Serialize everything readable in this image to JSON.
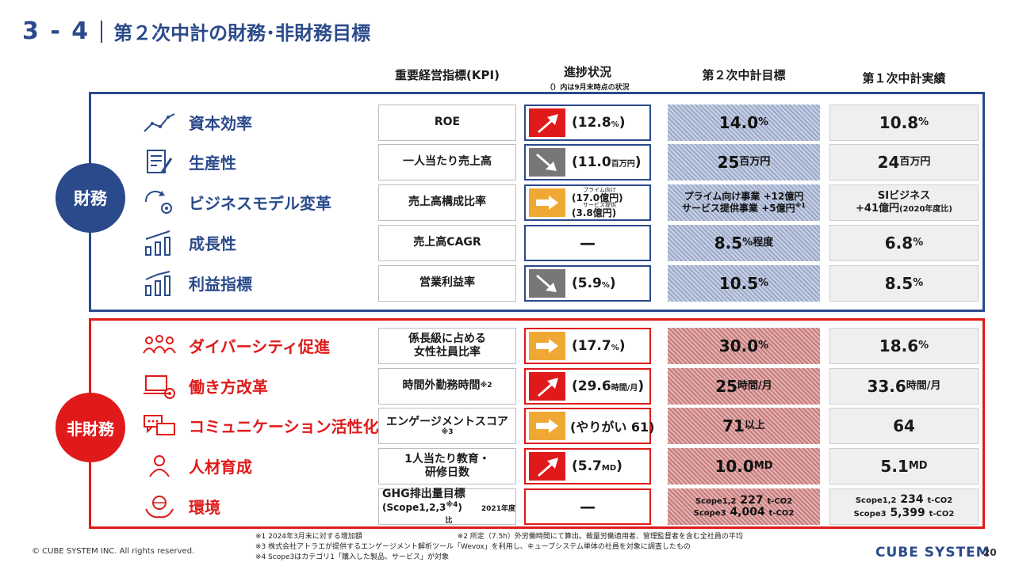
{
  "header": {
    "section": "3 - 4",
    "title": "第２次中計の財務･非財務目標"
  },
  "columns": {
    "kpi": "重要経営指標(KPI)",
    "progress": "進捗状況",
    "progress_sub": "（）内は9月末時点の状況",
    "target": "第２次中計目標",
    "result": "第１次中計実績"
  },
  "badges": {
    "financial": "財務",
    "non_financial": "非財務"
  },
  "financial_rows": [
    {
      "icon": "line-chart-icon",
      "category": "資本効率",
      "kpi": "ROE",
      "trend": "up",
      "progress": "(12.8",
      "progress_unit": "%",
      "progress_close": ")",
      "target": "14.0",
      "target_unit": "%",
      "result": "10.8",
      "result_unit": "%"
    },
    {
      "icon": "document-edit-icon",
      "category": "生産性",
      "kpi": "一人当たり売上高",
      "trend": "down",
      "progress": "(11.0",
      "progress_unit": "百万円",
      "progress_close": ")",
      "target": "25",
      "target_unit": "百万円",
      "result": "24",
      "result_unit": "百万円"
    },
    {
      "icon": "cycle-gear-icon",
      "category": "ビジネスモデル変革",
      "kpi": "売上高構成比率",
      "trend": "flat",
      "progress_label1": "プライム向け",
      "progress_val1": "(17.0億円)",
      "progress_label2": "サービス提供",
      "progress_val2": "(3.8億円)",
      "target_line1": "プライム向け事業 +12億円",
      "target_line2": "サービス提供事業 +5億円",
      "target_note": "※1",
      "result_line1": "SIビジネス",
      "result_line2": "+41億円",
      "result_line2_note": "(2020年度比)"
    },
    {
      "icon": "bar-chart-icon",
      "category": "成長性",
      "kpi": "売上高CAGR",
      "trend": "none",
      "progress_dash": "—",
      "target": "8.5",
      "target_unit": "%程度",
      "result": "6.8",
      "result_unit": "%"
    },
    {
      "icon": "bar-trend-icon",
      "category": "利益指標",
      "kpi": "営業利益率",
      "trend": "down",
      "progress": "(5.9",
      "progress_unit": "%",
      "progress_close": ")",
      "target": "10.5",
      "target_unit": "%",
      "result": "8.5",
      "result_unit": "%"
    }
  ],
  "non_financial_rows": [
    {
      "icon": "people-group-icon",
      "category": "ダイバーシティ促進",
      "kpi_line1": "係長級に占める",
      "kpi_line2": "女性社員比率",
      "trend": "flat",
      "progress": "(17.7",
      "progress_unit": "%",
      "progress_close": ")",
      "target": "30.0",
      "target_unit": "%",
      "result": "18.6",
      "result_unit": "%"
    },
    {
      "icon": "laptop-gear-icon",
      "category": "働き方改革",
      "kpi": "時間外勤務時間",
      "kpi_note": "※2",
      "trend": "up",
      "progress": "(29.6",
      "progress_unit": "時間/月",
      "progress_close": ")",
      "target": "25",
      "target_unit": "時間/月",
      "result": "33.6",
      "result_unit": "時間/月"
    },
    {
      "icon": "chat-bubbles-icon",
      "category": "コミュニケーション活性化",
      "kpi": "エンゲージメントスコア",
      "kpi_note": "※3",
      "trend": "flat",
      "progress": "(やりがい 61)",
      "progress_unit": "",
      "progress_close": "",
      "target": "71",
      "target_unit": "以上",
      "result": "64",
      "result_unit": ""
    },
    {
      "icon": "person-icon",
      "category": "人材育成",
      "kpi_line1": "1人当たり教育・",
      "kpi_line2": "研修日数",
      "trend": "up",
      "progress": "(5.7",
      "progress_unit": "MD",
      "progress_close": ")",
      "target": "10.0",
      "target_unit": "MD",
      "result": "5.1",
      "result_unit": "MD"
    },
    {
      "icon": "globe-hands-icon",
      "category": "環境",
      "kpi_line1": "GHG排出量目標",
      "kpi_line2": "(Scope1,2,3",
      "kpi_note": "※4",
      "kpi_line2_close": ")",
      "kpi_extra": "2021年度比",
      "trend": "none",
      "progress_dash": "—",
      "target_s12_label": "Scope1,2",
      "target_s12_val": "227",
      "target_s3_label": "Scope3",
      "target_s3_val": "4,004",
      "target_unit": "t-CO2",
      "result_s12_label": "Scope1,2",
      "result_s12_val": "234",
      "result_s3_label": "Scope3",
      "result_s3_val": "5,399",
      "result_unit": "t-CO2"
    }
  ],
  "footer": {
    "copyright": "© CUBE SYSTEM INC. All rights reserved.",
    "note1": "※1 2024年3月末に対する増加額",
    "note2": "※2 所定（7.5h）外労働時間にて算出。裁量労働適用者、管理監督者を含む全社員の平均",
    "note3": "※3 株式会社アトラエが提供するエンゲージメント解析ツール「Wevox」を利用し、キューブシステム単体の社員を対象に調査したもの",
    "note4": "※4 Scope3はカテゴリ1「購入した製品、サービス」が対象",
    "logo": "CUBE SYSTEM",
    "page": "20"
  },
  "colors": {
    "blue": "#2b4a8b",
    "red": "#e01a1a",
    "orange": "#f0a835",
    "gray": "#777777"
  }
}
